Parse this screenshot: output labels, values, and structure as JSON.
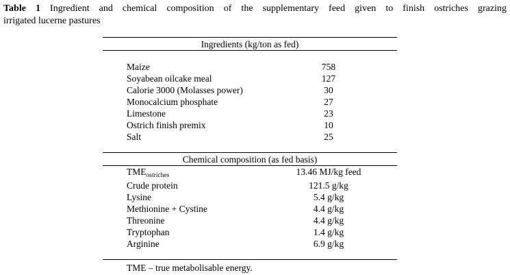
{
  "colors": {
    "background": "#ffffff",
    "text": "#000000",
    "rule": "#000000"
  },
  "caption": {
    "label": "Table 1",
    "line1": "Ingredient and chemical composition of the supplementary feed given to finish ostriches grazing",
    "line2": "irrigated lucerne pastures"
  },
  "table": {
    "sections": [
      {
        "header": "Ingredients (kg/ton as fed)",
        "rows": [
          {
            "label": "Maize",
            "value": "758"
          },
          {
            "label": "Soyabean oilcake meal",
            "value": "127"
          },
          {
            "label": "Calorie 3000 (Molasses power)",
            "value": "30"
          },
          {
            "label": "Monocalcium phosphate",
            "value": "27"
          },
          {
            "label": "Limestone",
            "value": "23"
          },
          {
            "label": "Ostrich finish premix",
            "value": "10"
          },
          {
            "label": "Salt",
            "value": "25"
          }
        ]
      },
      {
        "header": "Chemical composition (as fed basis)",
        "rows": [
          {
            "label": "TME",
            "label_sub": "ostriches",
            "value": "13.46 MJ/kg feed"
          },
          {
            "label": "Crude protein",
            "value": "121.5 g/kg"
          },
          {
            "label": "Lysine",
            "value": "5.4 g/kg"
          },
          {
            "label": "Methionine + Cystine",
            "value": "4.4 g/kg"
          },
          {
            "label": "Threonine",
            "value": "4.4 g/kg"
          },
          {
            "label": "Tryptophan",
            "value": "1.4 g/kg"
          },
          {
            "label": "Arginine",
            "value": "6.9 g/kg"
          }
        ]
      }
    ],
    "footnote": "TME – true metabolisable energy."
  }
}
